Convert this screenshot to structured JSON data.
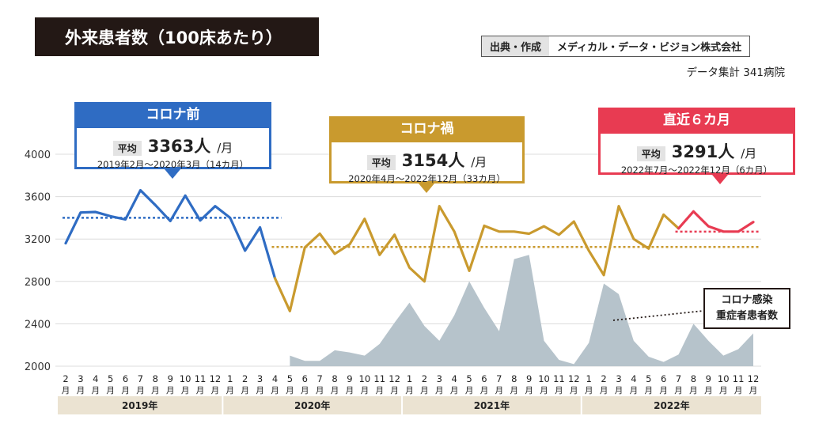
{
  "title": "外来患者数（100床あたり）",
  "source": {
    "label": "出典・作成",
    "value": "メディカル・データ・ビジョン株式会社"
  },
  "hospitals": "データ集計 341病院",
  "periods": [
    {
      "name": "コロナ前",
      "avg_label": "平均",
      "avg_value": "3363人",
      "avg_unit": "/月",
      "range": "2019年2月～2020年3月（14カ月）",
      "color": "#2f6cc3"
    },
    {
      "name": "コロナ禍",
      "avg_label": "平均",
      "avg_value": "3154人",
      "avg_unit": "/月",
      "range": "2020年4月～2022年12月（33カ月）",
      "color": "#c99a2e"
    },
    {
      "name": "直近６カ月",
      "avg_label": "平均",
      "avg_value": "3291人",
      "avg_unit": "/月",
      "range": "2022年7月～2022年12月（6カ月）",
      "color": "#e83b52"
    }
  ],
  "covid_label": [
    "コロナ感染",
    "重症者患者数"
  ],
  "chart_data": {
    "type": "line",
    "ylim": [
      2000,
      4000
    ],
    "yticks": [
      2000,
      2400,
      2800,
      3200,
      3600,
      4000
    ],
    "x_month_labels": [
      "2",
      "3",
      "4",
      "5",
      "6",
      "7",
      "8",
      "9",
      "10",
      "11",
      "12",
      "1",
      "2",
      "3",
      "4",
      "5",
      "6",
      "7",
      "8",
      "9",
      "10",
      "11",
      "12",
      "1",
      "2",
      "3",
      "4",
      "5",
      "6",
      "7",
      "8",
      "9",
      "10",
      "11",
      "12",
      "1",
      "2",
      "3",
      "4",
      "5",
      "6",
      "7",
      "8",
      "9",
      "10",
      "11",
      "12"
    ],
    "x_month_suffix": "月",
    "years": [
      {
        "label": "2019年",
        "months": 11
      },
      {
        "label": "2020年",
        "months": 12
      },
      {
        "label": "2021年",
        "months": 12
      },
      {
        "label": "2022年",
        "months": 12
      }
    ],
    "series": [
      {
        "color": "#2f6cc3",
        "start": 0,
        "values": [
          3160,
          3450,
          3455,
          3415,
          3385,
          3660,
          3520,
          3370,
          3610,
          3375,
          3510,
          3400,
          3090,
          3310,
          2830
        ]
      },
      {
        "color": "#c99a2e",
        "start": 14,
        "values": [
          2830,
          2520,
          3120,
          3250,
          3060,
          3150,
          3390,
          3050,
          3240,
          2930,
          2800,
          3510,
          3270,
          2900,
          3325,
          3270,
          3270,
          3250,
          3320,
          3240,
          3365,
          3090,
          2860,
          3510,
          3200,
          3110,
          3430,
          3300
        ]
      },
      {
        "color": "#e83b52",
        "start": 41,
        "values": [
          3300,
          3460,
          3320,
          3270,
          3270,
          3360
        ]
      }
    ],
    "averages": [
      {
        "value": 3400,
        "from": 0,
        "to": 14,
        "color": "#2f6cc3"
      },
      {
        "value": 3125,
        "from": 14,
        "to": 46,
        "color": "#c99a2e"
      },
      {
        "value": 3270,
        "from": 41,
        "to": 46,
        "color": "#e83b52"
      }
    ],
    "covid_area": {
      "start": 15,
      "values": [
        2100,
        2050,
        2050,
        2150,
        2130,
        2100,
        2210,
        2410,
        2600,
        2380,
        2240,
        2480,
        2800,
        2550,
        2330,
        3010,
        3050,
        2240,
        2060,
        2020,
        2220,
        2780,
        2680,
        2240,
        2090,
        2040,
        2110,
        2400,
        2240,
        2100,
        2160,
        2310
      ]
    }
  }
}
